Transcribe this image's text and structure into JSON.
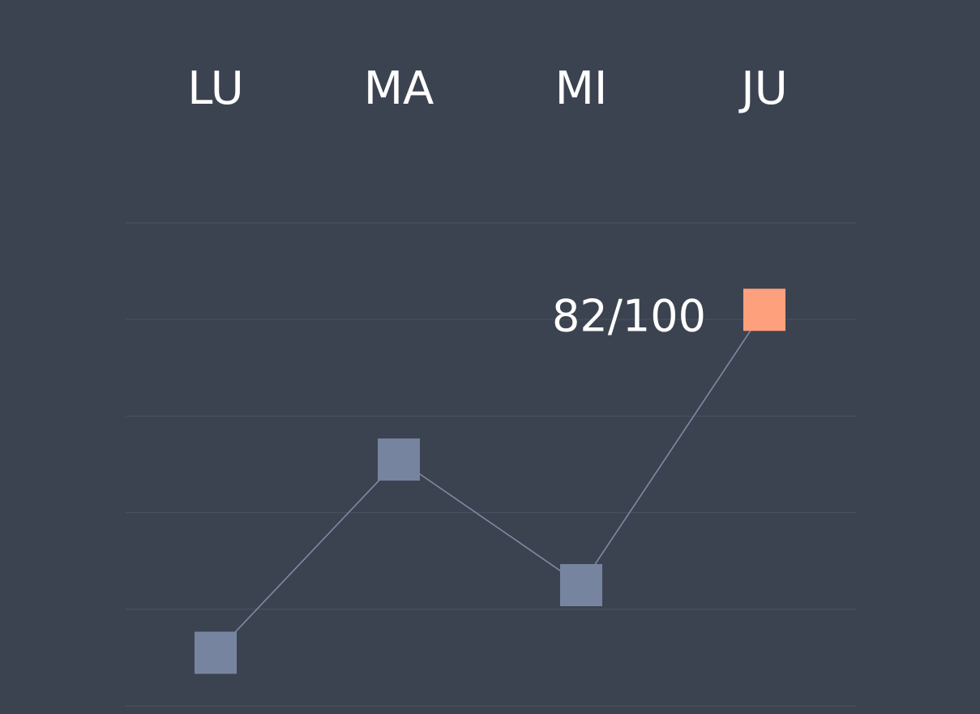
{
  "chart_data": {
    "type": "line",
    "categories": [
      "LU",
      "MA",
      "MI",
      "JU"
    ],
    "series": [
      {
        "values": [
          11,
          51,
          25,
          82
        ]
      }
    ],
    "ylim": [
      0,
      100
    ],
    "grid": true,
    "highlight": {
      "category": "JU",
      "label": "82/100"
    },
    "colors": {
      "background": "#3c4350",
      "grid": "#4a5160",
      "line": "#7d8aa6",
      "marker": "#76849f",
      "highlight": "#ffa07d",
      "text": "#ffffff"
    }
  }
}
